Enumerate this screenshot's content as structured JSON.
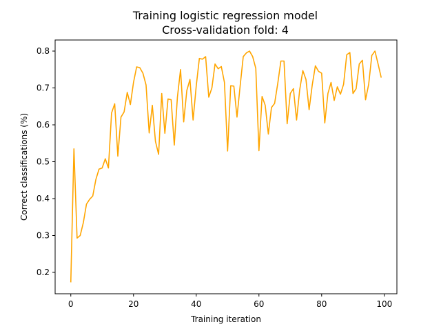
{
  "chart_data": {
    "type": "line",
    "title": "Training logistic regression model",
    "subtitle": "Cross-validation fold: 4",
    "xlabel": "Training iteration",
    "ylabel": "Correct classifications (%)",
    "xlim": [
      -5,
      104
    ],
    "ylim": [
      0.142,
      0.83
    ],
    "xticks": [
      0,
      20,
      40,
      60,
      80,
      100
    ],
    "yticks": [
      0.2,
      0.3,
      0.4,
      0.5,
      0.6,
      0.7,
      0.8
    ],
    "grid": false,
    "series": [
      {
        "color": "#ffa500",
        "x": [
          0,
          1,
          2,
          3,
          4,
          5,
          6,
          7,
          8,
          9,
          10,
          11,
          12,
          13,
          14,
          15,
          16,
          17,
          18,
          19,
          20,
          21,
          22,
          23,
          24,
          25,
          26,
          27,
          28,
          29,
          30,
          31,
          32,
          33,
          34,
          35,
          36,
          37,
          38,
          39,
          40,
          41,
          42,
          43,
          44,
          45,
          46,
          47,
          48,
          49,
          50,
          51,
          52,
          53,
          54,
          55,
          56,
          57,
          58,
          59,
          60,
          61,
          62,
          63,
          64,
          65,
          66,
          67,
          68,
          69,
          70,
          71,
          72,
          73,
          74,
          75,
          76,
          77,
          78,
          79,
          80,
          81,
          82,
          83,
          84,
          85,
          86,
          87,
          88,
          89,
          90,
          91,
          92,
          93,
          94,
          95,
          96,
          97,
          98,
          99
        ],
        "y": [
          0.173,
          0.535,
          0.293,
          0.3,
          0.335,
          0.385,
          0.398,
          0.407,
          0.452,
          0.48,
          0.483,
          0.508,
          0.483,
          0.632,
          0.657,
          0.515,
          0.621,
          0.635,
          0.688,
          0.655,
          0.715,
          0.757,
          0.755,
          0.74,
          0.708,
          0.578,
          0.653,
          0.555,
          0.52,
          0.685,
          0.577,
          0.67,
          0.668,
          0.545,
          0.675,
          0.75,
          0.608,
          0.693,
          0.723,
          0.613,
          0.705,
          0.78,
          0.778,
          0.785,
          0.675,
          0.7,
          0.765,
          0.752,
          0.758,
          0.715,
          0.529,
          0.706,
          0.705,
          0.621,
          0.705,
          0.785,
          0.795,
          0.8,
          0.785,
          0.753,
          0.53,
          0.677,
          0.653,
          0.575,
          0.647,
          0.658,
          0.712,
          0.773,
          0.773,
          0.603,
          0.685,
          0.698,
          0.613,
          0.695,
          0.747,
          0.723,
          0.641,
          0.708,
          0.76,
          0.745,
          0.74,
          0.605,
          0.685,
          0.715,
          0.666,
          0.703,
          0.683,
          0.71,
          0.79,
          0.796,
          0.685,
          0.698,
          0.765,
          0.775,
          0.668,
          0.71,
          0.788,
          0.8,
          0.765,
          0.728
        ]
      }
    ]
  }
}
